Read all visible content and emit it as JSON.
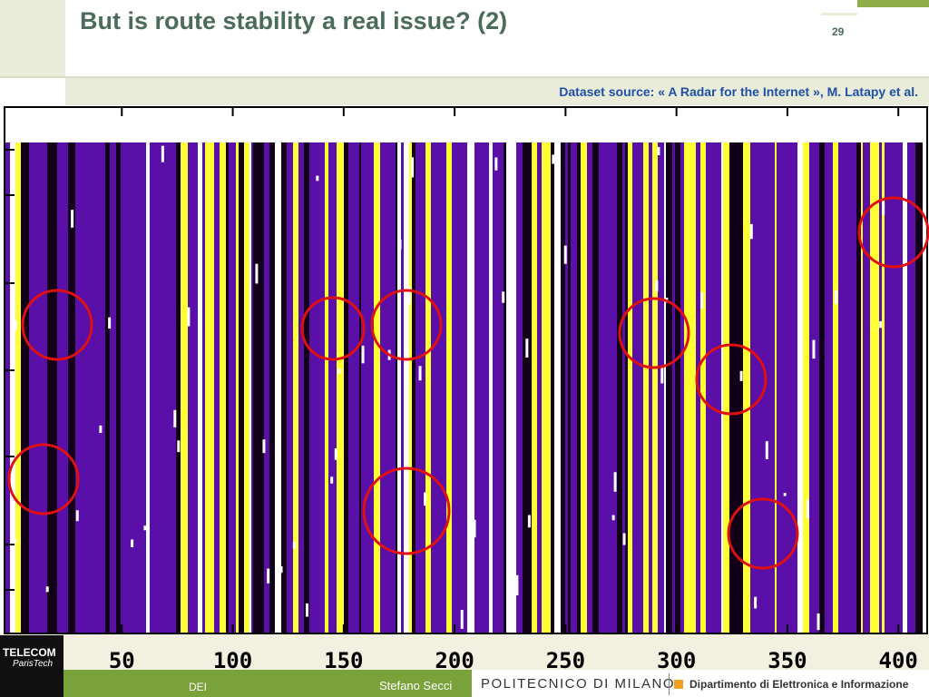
{
  "header": {
    "title": "But is route stability a real issue? (2)",
    "page_number": "29",
    "source": "Dataset source: « A Radar for the Internet », M. Latapy et al."
  },
  "figure": {
    "xlim": [
      0,
      413
    ],
    "xticks": [
      50,
      100,
      150,
      200,
      250,
      300,
      350,
      400
    ]
  },
  "footer": {
    "logo_top": "TELECOM",
    "logo_bottom": "ParisTech",
    "left": "DEI",
    "author": "Stefano Secci",
    "university": "POLITECNICO DI MILANO",
    "department": "Dipartimento di Elettronica e Informazione"
  }
}
